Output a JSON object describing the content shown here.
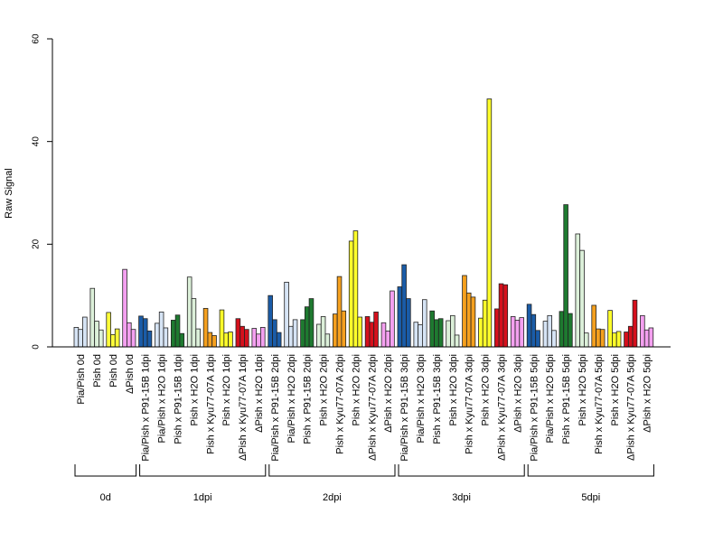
{
  "chart_data": {
    "type": "bar",
    "ylabel": "Raw Signal",
    "ylim": [
      0,
      60
    ],
    "yticks": [
      0,
      20,
      40,
      60
    ],
    "grid": false,
    "colors": {
      "Pia/Pish": "#d6e4f5",
      "Pish": "#dcf0d9",
      "ΔPish": "#f4a0f0",
      "P91-15B": "#1a5ca8",
      "H2O": "#ddeedd",
      "P91-15B green": "#1e7a30",
      "Kyu77-07A": "#f5a01e",
      "Kyu77-07A yellow": "#ffff2a",
      "Kyu77-07A red": "#d5101c",
      "Pish yellow": "#ffff3a"
    },
    "categories": [
      {
        "label": "Pia/Pish 0d",
        "color": "#d6e4f5",
        "values": [
          3.8,
          3.4,
          5.8
        ]
      },
      {
        "label": "Pish 0d",
        "color": "#dcf0d9",
        "values": [
          11.4,
          5.0,
          3.3
        ]
      },
      {
        "label": "Pish 0d",
        "color": "#ffff3a",
        "values": [
          6.7,
          2.4,
          3.5
        ]
      },
      {
        "label": "ΔPish 0d",
        "color": "#f4a0f0",
        "values": [
          15.1,
          4.7,
          3.4
        ]
      },
      {
        "label": "Pia/Pish x P91-15B 1dpi",
        "color": "#1a5ca8",
        "values": [
          6.0,
          5.5,
          3.1
        ]
      },
      {
        "label": "Pia/Pish x H2O 1dpi",
        "color": "#d6e4f5",
        "values": [
          4.6,
          6.8,
          3.7
        ]
      },
      {
        "label": "Pish x P91-15B 1dpi",
        "color": "#1e7a30",
        "values": [
          5.2,
          6.2,
          2.6
        ]
      },
      {
        "label": "Pish x H2O 1dpi",
        "color": "#dcf0d9",
        "values": [
          13.6,
          9.4,
          3.5
        ]
      },
      {
        "label": "Pish x Kyu77-07A 1dpi",
        "color": "#f5a01e",
        "values": [
          7.5,
          2.8,
          2.2
        ]
      },
      {
        "label": "Pish x H2O 1dpi",
        "color": "#ffff2a",
        "values": [
          7.2,
          2.7,
          2.9
        ]
      },
      {
        "label": "ΔPish x Kyu77-07A 1dpi",
        "color": "#d5101c",
        "values": [
          5.5,
          4.0,
          3.4
        ]
      },
      {
        "label": "ΔPish x H2O 1dpi",
        "color": "#f4a0f0",
        "values": [
          3.6,
          2.5,
          3.8
        ]
      },
      {
        "label": "Pia/Pish x P91-15B 2dpi",
        "color": "#1a5ca8",
        "values": [
          10.0,
          5.3,
          2.8
        ]
      },
      {
        "label": "Pia/Pish x H2O 2dpi",
        "color": "#d6e4f5",
        "values": [
          12.6,
          4.0,
          5.3
        ]
      },
      {
        "label": "Pish x P91-15B 2dpi",
        "color": "#1e7a30",
        "values": [
          5.3,
          7.8,
          9.4
        ]
      },
      {
        "label": "Pish x H2O 2dpi",
        "color": "#dcf0d9",
        "values": [
          4.4,
          5.9,
          2.5
        ]
      },
      {
        "label": "Pish x Kyu77-07A 2dpi",
        "color": "#f5a01e",
        "values": [
          6.4,
          13.7,
          7.0
        ]
      },
      {
        "label": "Pish x H2O 2dpi",
        "color": "#ffff2a",
        "values": [
          20.6,
          22.6,
          5.8
        ]
      },
      {
        "label": "ΔPish x Kyu77-07A 2dpi",
        "color": "#d5101c",
        "values": [
          5.9,
          4.8,
          6.8
        ]
      },
      {
        "label": "ΔPish x H2O 2dpi",
        "color": "#f4a0f0",
        "values": [
          4.7,
          3.1,
          10.9
        ]
      },
      {
        "label": "Pia/Pish x P91-15B 3dpi",
        "color": "#1a5ca8",
        "values": [
          11.7,
          16.0,
          9.4
        ]
      },
      {
        "label": "Pia/Pish x H2O 3dpi",
        "color": "#d6e4f5",
        "values": [
          4.8,
          4.3,
          9.2
        ]
      },
      {
        "label": "Pish x P91-15B 3dpi",
        "color": "#1e7a30",
        "values": [
          7.0,
          5.3,
          5.5
        ]
      },
      {
        "label": "Pish x H2O 3dpi",
        "color": "#dcf0d9",
        "values": [
          5.1,
          6.1,
          2.3
        ]
      },
      {
        "label": "Pish x Kyu77-07A 3dpi",
        "color": "#f5a01e",
        "values": [
          13.9,
          10.5,
          9.7
        ]
      },
      {
        "label": "Pish x H2O 3dpi",
        "color": "#ffff2a",
        "values": [
          5.6,
          9.1,
          48.3
        ]
      },
      {
        "label": "ΔPish x Kyu77-07A 3dpi",
        "color": "#d5101c",
        "values": [
          7.4,
          12.3,
          12.1
        ]
      },
      {
        "label": "ΔPish x H2O 3dpi",
        "color": "#f4a0f0",
        "values": [
          5.9,
          5.2,
          5.7
        ]
      },
      {
        "label": "Pia/Pish x P91-15B 5dpi",
        "color": "#1a5ca8",
        "values": [
          8.3,
          6.3,
          3.2
        ]
      },
      {
        "label": "Pia/Pish x H2O 5dpi",
        "color": "#d6e4f5",
        "values": [
          5.0,
          6.1,
          3.2
        ]
      },
      {
        "label": "Pish x P91-15B 5dpi",
        "color": "#1e7a30",
        "values": [
          6.9,
          27.7,
          6.5
        ]
      },
      {
        "label": "Pish x H2O 5dpi",
        "color": "#dcf0d9",
        "values": [
          22.0,
          18.8,
          2.7
        ]
      },
      {
        "label": "Pish x Kyu77-07A 5dpi",
        "color": "#f5a01e",
        "values": [
          8.1,
          3.5,
          3.4
        ]
      },
      {
        "label": "Pish x H2O 5dpi",
        "color": "#ffff2a",
        "values": [
          7.1,
          2.7,
          3.0
        ]
      },
      {
        "label": "ΔPish x Kyu77-07A 5dpi",
        "color": "#d5101c",
        "values": [
          2.9,
          4.0,
          9.1
        ]
      },
      {
        "label": "ΔPish x H2O 5dpi",
        "color": "#f4a0f0",
        "values": [
          6.1,
          3.3,
          3.7
        ]
      }
    ],
    "groups": [
      {
        "label": "0d",
        "start": 0,
        "end": 3
      },
      {
        "label": "1dpi",
        "start": 4,
        "end": 11
      },
      {
        "label": "2dpi",
        "start": 12,
        "end": 19
      },
      {
        "label": "3dpi",
        "start": 20,
        "end": 27
      },
      {
        "label": "5dpi",
        "start": 28,
        "end": 35
      }
    ]
  }
}
